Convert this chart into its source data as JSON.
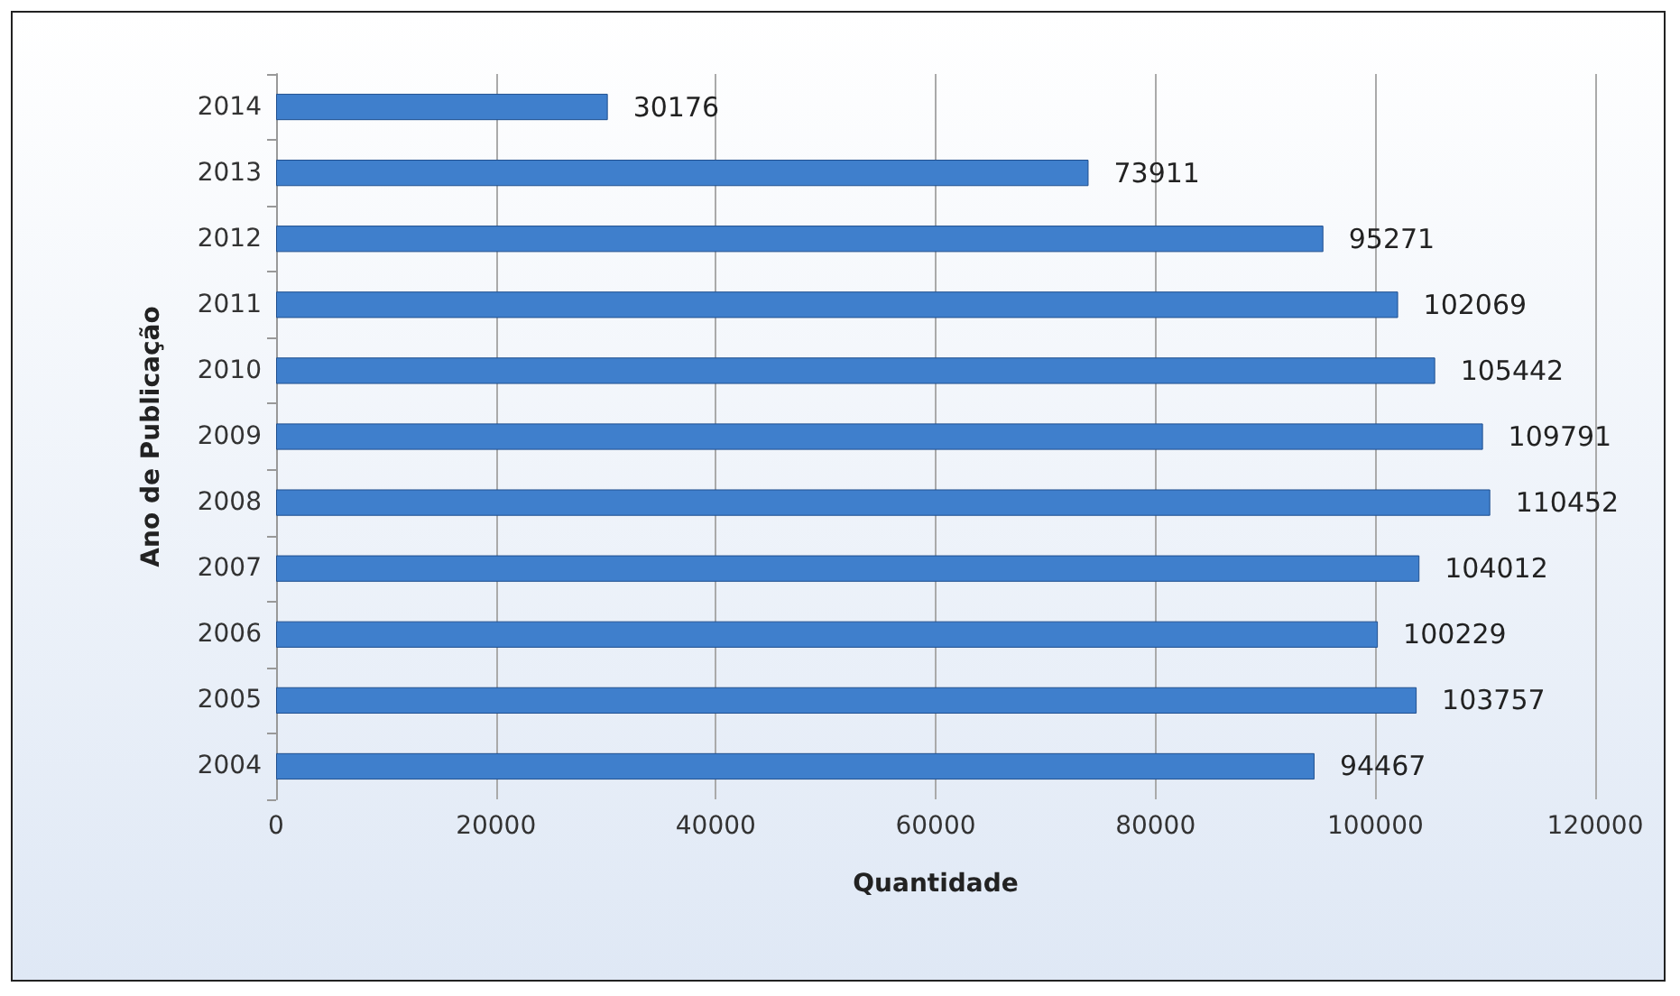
{
  "chart_data": {
    "type": "bar",
    "orientation": "horizontal",
    "xlabel": "Quantidade",
    "ylabel": "Ano de Publicação",
    "categories": [
      "2014",
      "2013",
      "2012",
      "2011",
      "2010",
      "2009",
      "2008",
      "2007",
      "2006",
      "2005",
      "2004"
    ],
    "values": [
      30176,
      73911,
      95271,
      102069,
      105442,
      109791,
      110452,
      104012,
      100229,
      103757,
      94467
    ],
    "color": "#3f7fcc",
    "xlim": [
      0,
      120000
    ],
    "xticks": [
      0,
      20000,
      40000,
      60000,
      80000,
      100000,
      120000
    ],
    "grid": "x",
    "data_labels": true
  }
}
